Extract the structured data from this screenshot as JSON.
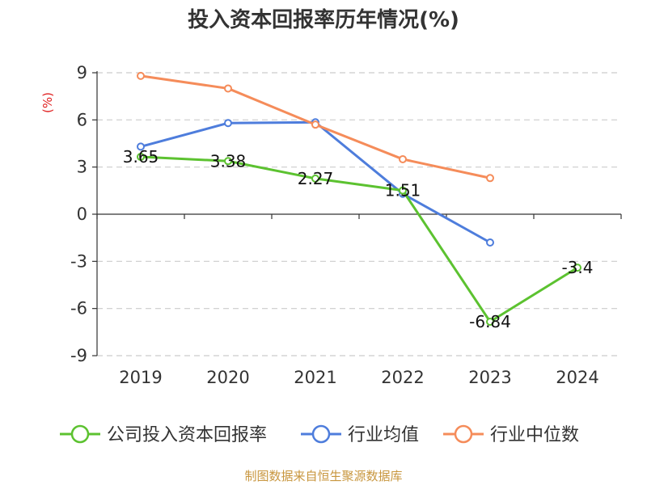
{
  "chart_data": {
    "type": "line",
    "title": "投入资本回报率历年情况(%)",
    "unit_label": "(%)",
    "categories": [
      "2019",
      "2020",
      "2021",
      "2022",
      "2023",
      "2024"
    ],
    "ylim": [
      -9,
      9
    ],
    "yticks": [
      9,
      6,
      3,
      0,
      -3,
      -6,
      -9
    ],
    "grid": true,
    "legend_position": "bottom",
    "series": [
      {
        "name": "公司投入资本回报率",
        "color": "#5cc230",
        "values": [
          3.65,
          3.38,
          2.27,
          1.51,
          -6.84,
          -3.4
        ],
        "labels": [
          "3.65",
          "3.38",
          "2.27",
          "1.51",
          "-6.84",
          "-3.4"
        ]
      },
      {
        "name": "行业均值",
        "color": "#4e7ddc",
        "values": [
          4.3,
          5.8,
          5.85,
          1.3,
          -1.8,
          null
        ]
      },
      {
        "name": "行业中位数",
        "color": "#f58c5a",
        "values": [
          8.8,
          8.0,
          5.7,
          3.5,
          2.3,
          null
        ]
      }
    ]
  },
  "footer": {
    "source": "制图数据来自恒生聚源数据库"
  }
}
